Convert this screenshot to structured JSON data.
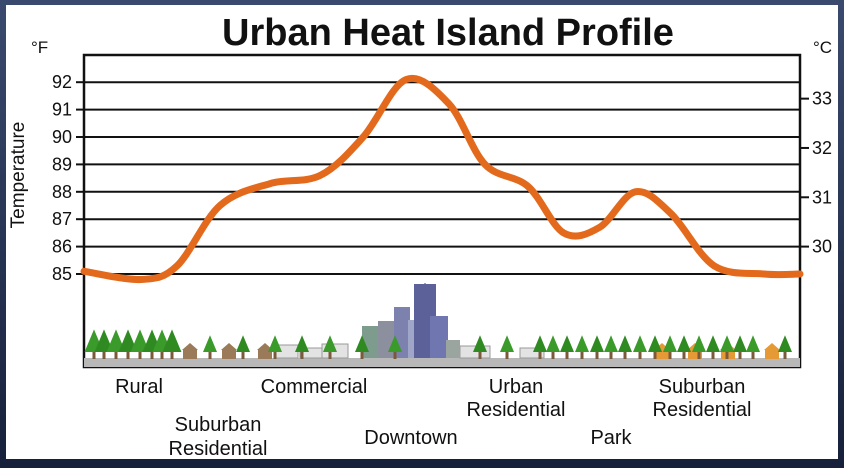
{
  "chart_data": {
    "type": "line",
    "title": "Urban Heat Island Profile",
    "ylabel": "Temperature",
    "y_unit_left": "°F",
    "y_unit_right": "°C",
    "y_ticks_left": [
      "85",
      "86",
      "87",
      "88",
      "89",
      "90",
      "91",
      "92"
    ],
    "y_ticks_right": [
      "30",
      "31",
      "32",
      "33"
    ],
    "ylim": [
      85,
      92
    ],
    "grid": true,
    "zones": [
      "Rural",
      "Suburban Residential",
      "Commercial",
      "Downtown",
      "Urban Residential",
      "Park",
      "Suburban Residential"
    ],
    "series": [
      {
        "color": "#e36a1c",
        "points": [
          {
            "x": 0.0,
            "y": 85.1
          },
          {
            "x": 0.08,
            "y": 84.8
          },
          {
            "x": 0.13,
            "y": 85.3
          },
          {
            "x": 0.19,
            "y": 87.5
          },
          {
            "x": 0.26,
            "y": 88.3
          },
          {
            "x": 0.33,
            "y": 88.6
          },
          {
            "x": 0.39,
            "y": 90.0
          },
          {
            "x": 0.45,
            "y": 92.1
          },
          {
            "x": 0.51,
            "y": 91.2
          },
          {
            "x": 0.56,
            "y": 89.0
          },
          {
            "x": 0.62,
            "y": 88.2
          },
          {
            "x": 0.67,
            "y": 86.5
          },
          {
            "x": 0.72,
            "y": 86.7
          },
          {
            "x": 0.77,
            "y": 88.0
          },
          {
            "x": 0.82,
            "y": 87.2
          },
          {
            "x": 0.88,
            "y": 85.3
          },
          {
            "x": 0.95,
            "y": 85.0
          },
          {
            "x": 1.0,
            "y": 85.0
          }
        ]
      }
    ]
  },
  "colors": {
    "curve": "#e36a1c",
    "tree": "#3a9a2a",
    "building": "#6a6fa3",
    "house": "#e59a36",
    "ground": "#b8b8b8"
  }
}
